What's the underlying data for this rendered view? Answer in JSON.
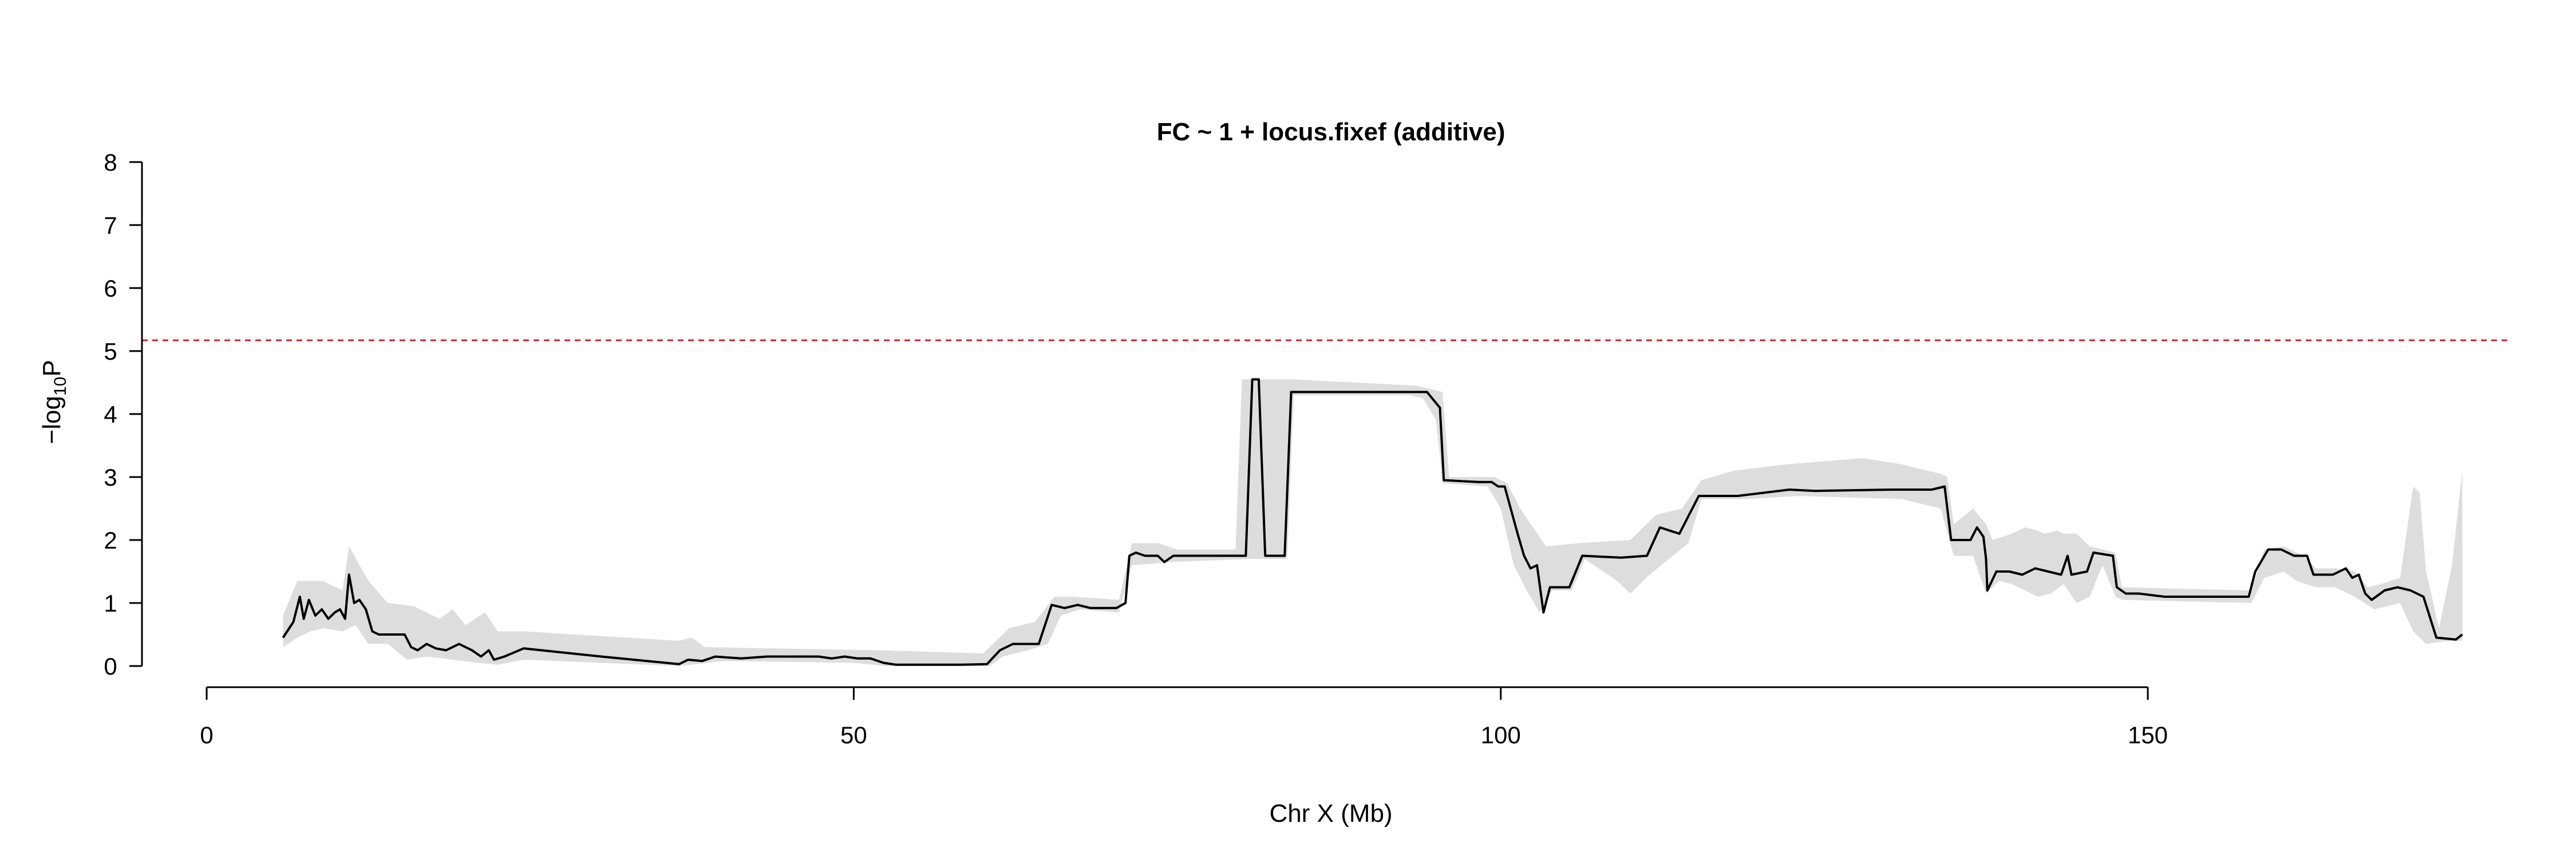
{
  "chart_data": {
    "type": "line",
    "title": "FC ~ 1 + locus.fixef (additive)",
    "xlabel": "Chr X (Mb)",
    "ylabel_main": "−log",
    "ylabel_sub": "10",
    "ylabel_tail": "P",
    "xlim": [
      -5,
      178
    ],
    "ylim": [
      0,
      8
    ],
    "x_axis_range": [
      0,
      150
    ],
    "x_ticks": [
      0,
      50,
      100,
      150
    ],
    "x_tick_labels": [
      "0",
      "50",
      "100",
      "150"
    ],
    "y_ticks": [
      0,
      1,
      2,
      3,
      4,
      5,
      6,
      7,
      8
    ],
    "y_tick_labels": [
      "0",
      "1",
      "2",
      "3",
      "4",
      "5",
      "6",
      "7",
      "8"
    ],
    "threshold": {
      "y": 5.17,
      "color": "#e31a1c"
    },
    "colors": {
      "line": "#000000",
      "band": "#dddddd",
      "axis": "#000000"
    },
    "grid": false,
    "series": [
      {
        "values": [
          [
            5.9,
            0.45
          ],
          [
            6.7,
            0.7
          ],
          [
            7.2,
            1.1
          ],
          [
            7.5,
            0.75
          ],
          [
            7.9,
            1.05
          ],
          [
            8.4,
            0.8
          ],
          [
            8.9,
            0.9
          ],
          [
            9.4,
            0.75
          ],
          [
            9.9,
            0.85
          ],
          [
            10.3,
            0.9
          ],
          [
            10.7,
            0.75
          ],
          [
            11.0,
            1.45
          ],
          [
            11.4,
            1.0
          ],
          [
            11.8,
            1.05
          ],
          [
            12.3,
            0.9
          ],
          [
            12.8,
            0.55
          ],
          [
            13.3,
            0.5
          ],
          [
            14.3,
            0.5
          ],
          [
            15.3,
            0.5
          ],
          [
            15.8,
            0.3
          ],
          [
            16.3,
            0.25
          ],
          [
            17.0,
            0.35
          ],
          [
            17.7,
            0.28
          ],
          [
            18.5,
            0.25
          ],
          [
            19.5,
            0.35
          ],
          [
            20.5,
            0.25
          ],
          [
            21.2,
            0.15
          ],
          [
            21.8,
            0.25
          ],
          [
            22.2,
            0.1
          ],
          [
            23.0,
            0.15
          ],
          [
            24.5,
            0.28
          ],
          [
            30.5,
            0.15
          ],
          [
            36.5,
            0.03
          ],
          [
            37.2,
            0.1
          ],
          [
            38.3,
            0.08
          ],
          [
            39.3,
            0.15
          ],
          [
            41.3,
            0.12
          ],
          [
            43.3,
            0.15
          ],
          [
            45.3,
            0.15
          ],
          [
            47.3,
            0.15
          ],
          [
            48.3,
            0.12
          ],
          [
            49.3,
            0.15
          ],
          [
            50.3,
            0.12
          ],
          [
            51.3,
            0.12
          ],
          [
            52.3,
            0.05
          ],
          [
            53.3,
            0.02
          ],
          [
            58.3,
            0.02
          ],
          [
            60.3,
            0.03
          ],
          [
            61.3,
            0.25
          ],
          [
            62.3,
            0.35
          ],
          [
            64.3,
            0.35
          ],
          [
            65.3,
            0.97
          ],
          [
            66.3,
            0.92
          ],
          [
            67.3,
            0.97
          ],
          [
            68.3,
            0.92
          ],
          [
            70.3,
            0.92
          ],
          [
            71.0,
            1.0
          ],
          [
            71.3,
            1.75
          ],
          [
            71.8,
            1.8
          ],
          [
            72.5,
            1.75
          ],
          [
            73.5,
            1.75
          ],
          [
            74.0,
            1.65
          ],
          [
            74.7,
            1.75
          ],
          [
            75.3,
            1.75
          ],
          [
            80.3,
            1.75
          ],
          [
            80.8,
            4.55
          ],
          [
            81.3,
            4.55
          ],
          [
            81.8,
            1.75
          ],
          [
            83.3,
            1.75
          ],
          [
            83.8,
            4.35
          ],
          [
            93.3,
            4.35
          ],
          [
            94.3,
            4.35
          ],
          [
            95.3,
            4.1
          ],
          [
            95.6,
            2.95
          ],
          [
            98.3,
            2.92
          ],
          [
            99.3,
            2.92
          ],
          [
            99.8,
            2.85
          ],
          [
            100.3,
            2.85
          ],
          [
            101.3,
            2.1
          ],
          [
            101.8,
            1.75
          ],
          [
            102.3,
            1.55
          ],
          [
            102.8,
            1.6
          ],
          [
            103.3,
            0.85
          ],
          [
            103.8,
            1.25
          ],
          [
            105.3,
            1.25
          ],
          [
            106.3,
            1.75
          ],
          [
            109.3,
            1.72
          ],
          [
            111.3,
            1.75
          ],
          [
            112.3,
            2.2
          ],
          [
            113.8,
            2.1
          ],
          [
            115.3,
            2.7
          ],
          [
            118.3,
            2.7
          ],
          [
            122.3,
            2.8
          ],
          [
            124.3,
            2.78
          ],
          [
            130.3,
            2.8
          ],
          [
            133.3,
            2.8
          ],
          [
            134.3,
            2.85
          ],
          [
            134.8,
            2.0
          ],
          [
            136.3,
            2.0
          ],
          [
            136.8,
            2.2
          ],
          [
            137.3,
            2.05
          ],
          [
            137.5,
            1.7
          ],
          [
            137.6,
            1.2
          ],
          [
            138.3,
            1.5
          ],
          [
            139.3,
            1.5
          ],
          [
            140.3,
            1.45
          ],
          [
            141.3,
            1.55
          ],
          [
            142.3,
            1.5
          ],
          [
            143.3,
            1.45
          ],
          [
            143.8,
            1.75
          ],
          [
            144.1,
            1.45
          ],
          [
            145.3,
            1.5
          ],
          [
            145.8,
            1.8
          ],
          [
            147.3,
            1.75
          ],
          [
            147.6,
            1.25
          ],
          [
            148.3,
            1.15
          ],
          [
            149.3,
            1.15
          ],
          [
            151.3,
            1.1
          ],
          [
            157.8,
            1.1
          ],
          [
            158.3,
            1.5
          ],
          [
            159.3,
            1.85
          ],
          [
            160.3,
            1.85
          ],
          [
            161.3,
            1.75
          ],
          [
            162.3,
            1.75
          ],
          [
            162.8,
            1.45
          ],
          [
            164.3,
            1.45
          ],
          [
            165.3,
            1.55
          ],
          [
            165.8,
            1.4
          ],
          [
            166.3,
            1.45
          ],
          [
            166.8,
            1.15
          ],
          [
            167.3,
            1.05
          ],
          [
            168.3,
            1.2
          ],
          [
            169.3,
            1.25
          ],
          [
            170.3,
            1.2
          ],
          [
            171.3,
            1.1
          ],
          [
            172.3,
            0.45
          ],
          [
            173.8,
            0.42
          ],
          [
            174.3,
            0.5
          ]
        ]
      }
    ],
    "band_upper": [
      [
        5.9,
        0.8
      ],
      [
        7.0,
        1.35
      ],
      [
        9.0,
        1.35
      ],
      [
        10.5,
        1.2
      ],
      [
        11.0,
        1.9
      ],
      [
        12.5,
        1.35
      ],
      [
        14.0,
        1.0
      ],
      [
        16.0,
        0.95
      ],
      [
        18.0,
        0.75
      ],
      [
        19.0,
        0.9
      ],
      [
        20.0,
        0.65
      ],
      [
        21.5,
        0.85
      ],
      [
        22.5,
        0.55
      ],
      [
        24.5,
        0.55
      ],
      [
        36.5,
        0.4
      ],
      [
        37.5,
        0.45
      ],
      [
        38.5,
        0.3
      ],
      [
        52.0,
        0.25
      ],
      [
        60.0,
        0.2
      ],
      [
        62.0,
        0.6
      ],
      [
        64.0,
        0.7
      ],
      [
        65.5,
        1.1
      ],
      [
        67.0,
        1.1
      ],
      [
        70.5,
        1.05
      ],
      [
        71.5,
        1.95
      ],
      [
        73.5,
        1.95
      ],
      [
        75.0,
        1.85
      ],
      [
        79.5,
        1.85
      ],
      [
        80.0,
        4.55
      ],
      [
        81.5,
        4.55
      ],
      [
        82.0,
        4.55
      ],
      [
        84.0,
        4.55
      ],
      [
        93.5,
        4.45
      ],
      [
        95.5,
        4.35
      ],
      [
        96.0,
        3.0
      ],
      [
        99.5,
        3.0
      ],
      [
        100.5,
        2.9
      ],
      [
        101.5,
        2.5
      ],
      [
        102.5,
        2.2
      ],
      [
        103.5,
        1.9
      ],
      [
        106.0,
        1.95
      ],
      [
        110.0,
        2.0
      ],
      [
        112.0,
        2.4
      ],
      [
        114.0,
        2.5
      ],
      [
        115.5,
        2.95
      ],
      [
        118.0,
        3.1
      ],
      [
        122.0,
        3.2
      ],
      [
        128.0,
        3.3
      ],
      [
        131.0,
        3.2
      ],
      [
        134.0,
        3.05
      ],
      [
        134.5,
        3.0
      ],
      [
        135.0,
        2.25
      ],
      [
        136.5,
        2.5
      ],
      [
        137.5,
        2.25
      ],
      [
        138.0,
        2.0
      ],
      [
        139.5,
        2.1
      ],
      [
        140.5,
        2.2
      ],
      [
        141.5,
        2.15
      ],
      [
        142.0,
        2.1
      ],
      [
        143.0,
        2.15
      ],
      [
        143.5,
        2.1
      ],
      [
        144.5,
        2.1
      ],
      [
        145.5,
        1.9
      ],
      [
        147.5,
        1.8
      ],
      [
        148.0,
        1.25
      ],
      [
        158.0,
        1.2
      ],
      [
        159.0,
        1.85
      ],
      [
        160.5,
        1.9
      ],
      [
        162.0,
        1.75
      ],
      [
        163.0,
        1.55
      ],
      [
        164.5,
        1.55
      ],
      [
        166.0,
        1.5
      ],
      [
        167.0,
        1.25
      ],
      [
        168.0,
        1.3
      ],
      [
        169.5,
        1.4
      ],
      [
        170.5,
        2.85
      ],
      [
        171.0,
        2.75
      ],
      [
        171.5,
        1.5
      ],
      [
        172.5,
        0.6
      ],
      [
        173.5,
        1.6
      ],
      [
        174.3,
        3.1
      ]
    ],
    "band_lower": [
      [
        5.9,
        0.3
      ],
      [
        7.0,
        0.45
      ],
      [
        8.0,
        0.55
      ],
      [
        9.0,
        0.6
      ],
      [
        10.5,
        0.55
      ],
      [
        11.5,
        0.65
      ],
      [
        12.5,
        0.35
      ],
      [
        14.0,
        0.35
      ],
      [
        15.5,
        0.1
      ],
      [
        17.0,
        0.15
      ],
      [
        19.0,
        0.1
      ],
      [
        21.0,
        0.05
      ],
      [
        22.5,
        0.02
      ],
      [
        24.5,
        0.1
      ],
      [
        36.5,
        0.0
      ],
      [
        40.0,
        0.08
      ],
      [
        50.0,
        0.05
      ],
      [
        52.5,
        0.0
      ],
      [
        60.5,
        0.0
      ],
      [
        61.5,
        0.15
      ],
      [
        63.5,
        0.25
      ],
      [
        65.0,
        0.35
      ],
      [
        66.0,
        0.8
      ],
      [
        67.5,
        0.9
      ],
      [
        70.5,
        0.85
      ],
      [
        71.5,
        1.6
      ],
      [
        74.5,
        1.65
      ],
      [
        80.5,
        1.7
      ],
      [
        81.5,
        1.7
      ],
      [
        82.0,
        1.7
      ],
      [
        83.5,
        1.7
      ],
      [
        84.0,
        4.3
      ],
      [
        93.0,
        4.3
      ],
      [
        94.0,
        4.25
      ],
      [
        95.0,
        3.9
      ],
      [
        95.5,
        2.9
      ],
      [
        99.0,
        2.85
      ],
      [
        100.0,
        2.5
      ],
      [
        101.0,
        1.6
      ],
      [
        102.0,
        1.2
      ],
      [
        103.0,
        0.85
      ],
      [
        104.0,
        1.2
      ],
      [
        105.5,
        1.2
      ],
      [
        106.5,
        1.7
      ],
      [
        109.0,
        1.35
      ],
      [
        110.0,
        1.15
      ],
      [
        111.5,
        1.45
      ],
      [
        114.5,
        1.95
      ],
      [
        115.5,
        2.65
      ],
      [
        119.0,
        2.65
      ],
      [
        123.0,
        2.7
      ],
      [
        131.0,
        2.65
      ],
      [
        134.0,
        2.5
      ],
      [
        135.0,
        1.75
      ],
      [
        136.5,
        1.75
      ],
      [
        137.5,
        1.15
      ],
      [
        138.5,
        1.35
      ],
      [
        139.5,
        1.3
      ],
      [
        140.5,
        1.2
      ],
      [
        141.5,
        1.1
      ],
      [
        142.5,
        1.15
      ],
      [
        143.5,
        1.3
      ],
      [
        144.5,
        1.0
      ],
      [
        145.5,
        1.1
      ],
      [
        146.5,
        1.6
      ],
      [
        147.5,
        1.1
      ],
      [
        148.0,
        1.05
      ],
      [
        158.0,
        1.0
      ],
      [
        159.0,
        1.4
      ],
      [
        160.5,
        1.5
      ],
      [
        161.5,
        1.35
      ],
      [
        163.0,
        1.25
      ],
      [
        164.5,
        1.25
      ],
      [
        166.0,
        1.1
      ],
      [
        167.5,
        0.9
      ],
      [
        169.5,
        1.0
      ],
      [
        170.5,
        0.55
      ],
      [
        171.5,
        0.35
      ],
      [
        172.5,
        0.38
      ],
      [
        173.5,
        0.4
      ],
      [
        174.3,
        0.4
      ]
    ]
  }
}
